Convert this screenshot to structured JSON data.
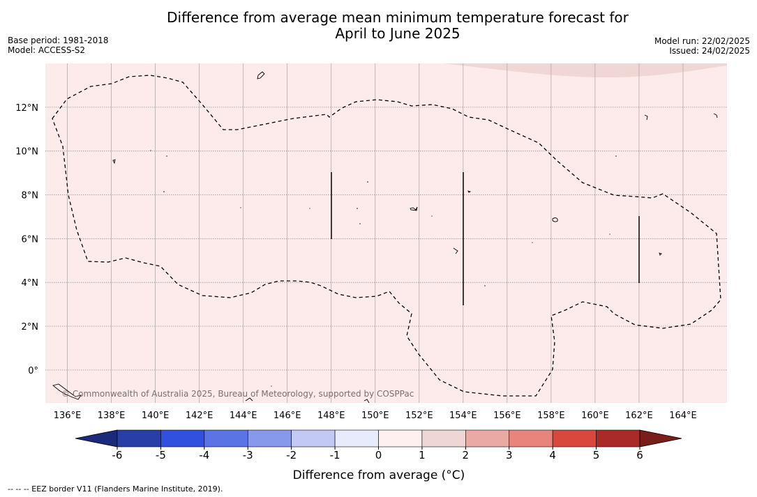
{
  "title_line1": "Difference from average mean minimum temperature forecast for",
  "title_line2": "April to June 2025",
  "base_period": "Base period: 1981-2018",
  "model": "Model: ACCESS-S2",
  "model_run": "Model run: 22/02/2025",
  "issued": "Issued: 24/02/2025",
  "copyright": "© Commonwealth of Australia 2025, Bureau of Meteorology, supported by COSPPac",
  "footer_note": "--  --  -- EEZ border V11 (Flanders Marine Institute, 2019).",
  "map": {
    "lon_range": [
      135,
      166
    ],
    "lat_range": [
      -1.5,
      14
    ],
    "lon_ticks": [
      "136°E",
      "138°E",
      "140°E",
      "142°E",
      "144°E",
      "146°E",
      "148°E",
      "150°E",
      "152°E",
      "154°E",
      "156°E",
      "158°E",
      "160°E",
      "162°E",
      "164°E"
    ],
    "lat_ticks": [
      "0°",
      "2°N",
      "4°N",
      "6°N",
      "8°N",
      "10°N",
      "12°N"
    ],
    "background_color": "#fcebea",
    "grid": true
  },
  "colorbar": {
    "label": "Difference from average (°C)",
    "tick_labels": [
      "-6",
      "-5",
      "-4",
      "-3",
      "-2",
      "-1",
      "0",
      "1",
      "2",
      "3",
      "4",
      "5",
      "6"
    ],
    "colors": [
      "#2a3ea8",
      "#3150e0",
      "#5a74e6",
      "#8799ea",
      "#c1c9f4",
      "#e8ebfb",
      "#fdf0ef",
      "#eed6d5",
      "#eba9a4",
      "#e6857c",
      "#d9473d",
      "#a92a26"
    ],
    "low_extend_color": "#1b2a7a",
    "high_extend_color": "#7a1e1b"
  }
}
